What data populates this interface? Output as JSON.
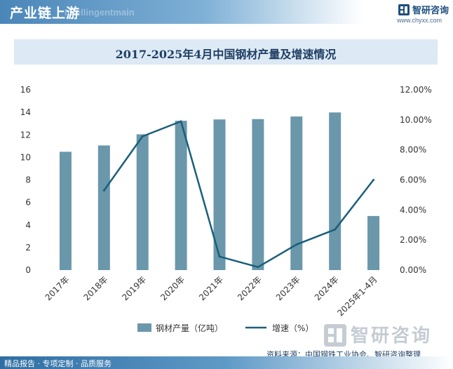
{
  "header": {
    "title": "产业链上游",
    "watermark": "Intellingentmain",
    "brand_name": "智研咨询",
    "brand_url": "www.chyxx.com"
  },
  "footer": {
    "tagline": "精品报告 · 专项定制 · 品质服务",
    "source": "资料来源：中国钢铁工业协会、智研咨询整理",
    "watermark": "智研咨询"
  },
  "colors": {
    "bar": "#6b97ab",
    "line": "#1a5f7a",
    "header": "#4a86b8",
    "title_bg": "#dde9f4"
  },
  "chart_data": {
    "type": "bar",
    "title": "2017-2025年4月中国钢材产量及增速情况",
    "categories": [
      "2017年",
      "2018年",
      "2019年",
      "2020年",
      "2021年",
      "2022年",
      "2023年",
      "2024年",
      "2025年1-4月"
    ],
    "series": [
      {
        "name": "钢材产量（亿吨）",
        "type": "bar",
        "axis": "left",
        "values": [
          10.5,
          11.06,
          12.05,
          13.25,
          13.37,
          13.4,
          13.63,
          13.99,
          4.8
        ]
      },
      {
        "name": "增速（%）",
        "type": "line",
        "axis": "right",
        "values": [
          null,
          5.3,
          8.9,
          9.9,
          0.9,
          0.2,
          1.7,
          2.7,
          6.0
        ]
      }
    ],
    "left_axis": {
      "min": 0,
      "max": 16,
      "ticks": [
        "0",
        "2",
        "4",
        "6",
        "8",
        "10",
        "12",
        "14",
        "16"
      ]
    },
    "right_axis": {
      "min": 0,
      "max": 12,
      "ticks": [
        "0.00%",
        "2.00%",
        "4.00%",
        "6.00%",
        "8.00%",
        "10.00%",
        "12.00%"
      ]
    },
    "grid": false,
    "legend": "bottom-center"
  }
}
